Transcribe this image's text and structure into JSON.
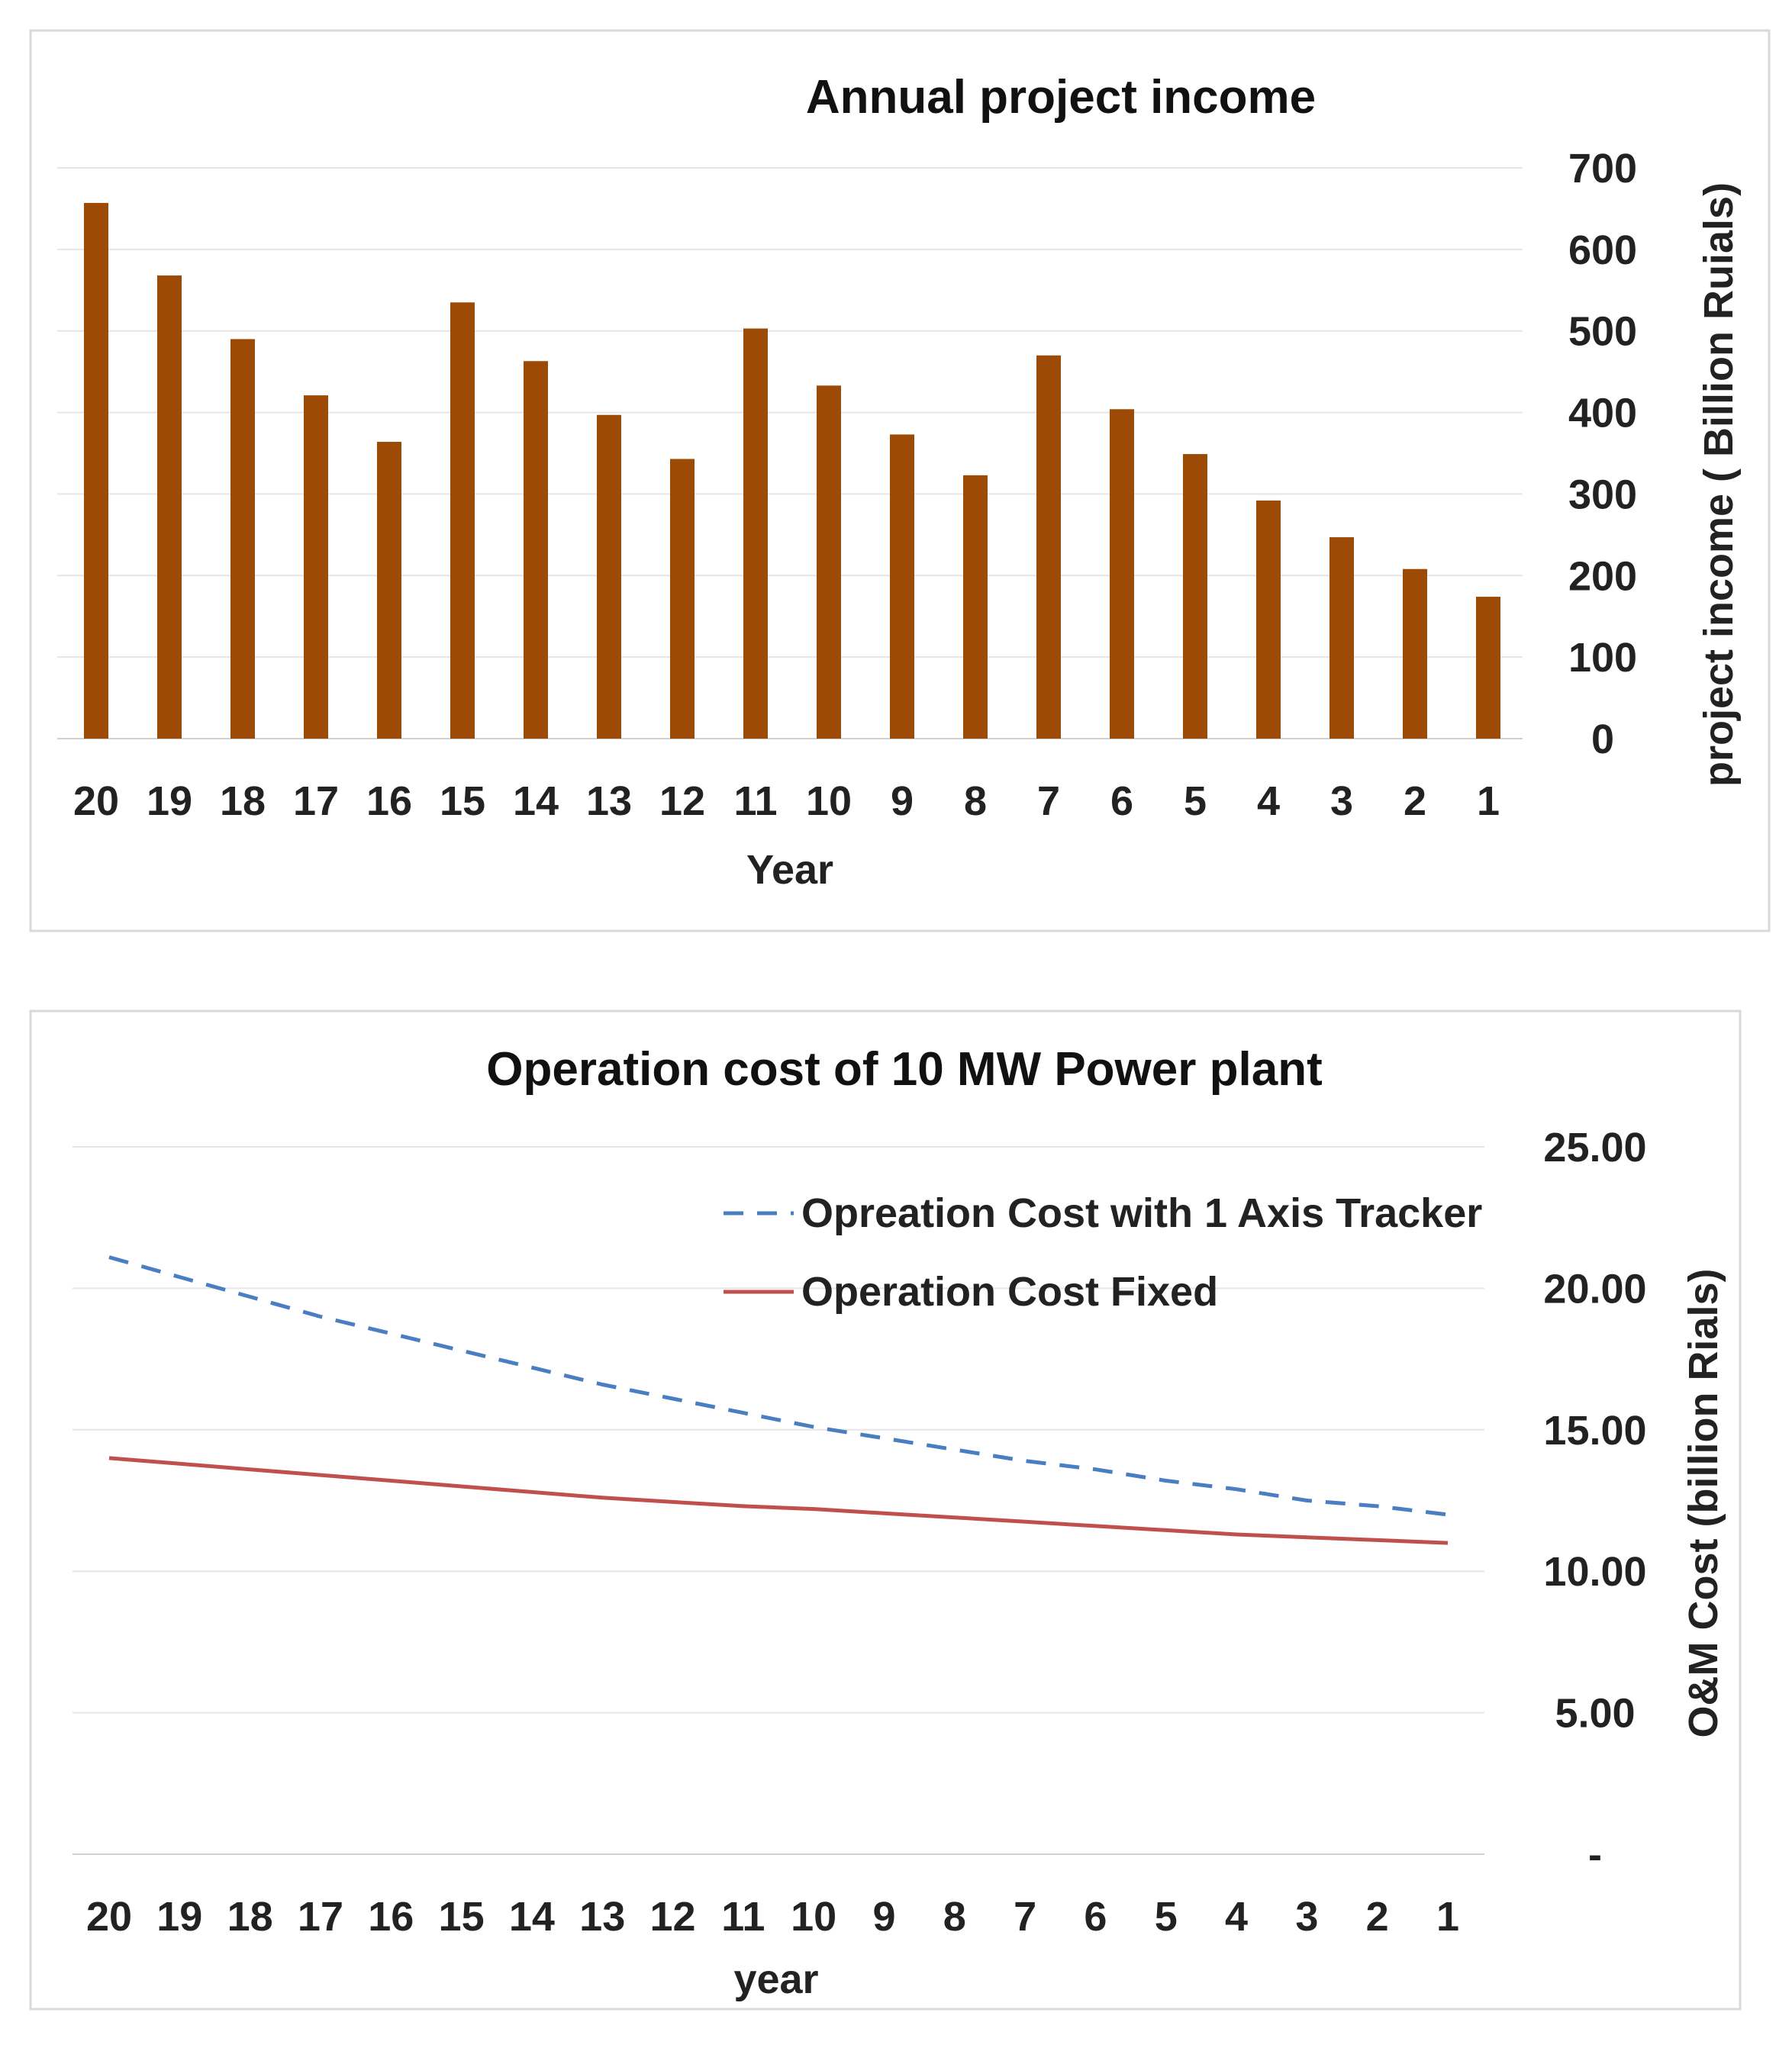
{
  "chart_data": [
    {
      "type": "bar",
      "title": "Annual project income",
      "xlabel": "Year",
      "ylabel": "project income ( Billion Ruials)",
      "categories": [
        "20",
        "19",
        "18",
        "17",
        "16",
        "15",
        "14",
        "13",
        "12",
        "11",
        "10",
        "9",
        "8",
        "7",
        "6",
        "5",
        "4",
        "3",
        "2",
        "1"
      ],
      "values": [
        657,
        568,
        490,
        421,
        364,
        535,
        463,
        397,
        343,
        503,
        433,
        373,
        323,
        470,
        404,
        349,
        292,
        247,
        208,
        174
      ],
      "ylim": [
        0,
        700
      ],
      "yticks": [
        "0",
        "100",
        "200",
        "300",
        "400",
        "500",
        "600",
        "700"
      ],
      "grid": true,
      "y_axis_side": "right",
      "color": "#9C4A05"
    },
    {
      "type": "line",
      "title": "Operation cost of 10 MW Power plant",
      "xlabel": "year",
      "ylabel": "O&M Cost (billion Rials)",
      "categories": [
        "20",
        "19",
        "18",
        "17",
        "16",
        "15",
        "14",
        "13",
        "12",
        "11",
        "10",
        "9",
        "8",
        "7",
        "6",
        "5",
        "4",
        "3",
        "2",
        "1"
      ],
      "series": [
        {
          "name": "Opreation Cost with 1 Axis Tracker",
          "style": "dashed",
          "color": "#4A7EC2",
          "values": [
            21.1,
            20.4,
            19.7,
            19.0,
            18.4,
            17.8,
            17.2,
            16.6,
            16.1,
            15.6,
            15.1,
            14.7,
            14.3,
            13.9,
            13.6,
            13.2,
            12.9,
            12.5,
            12.3,
            12.0
          ]
        },
        {
          "name": "Operation Cost Fixed",
          "style": "solid",
          "color": "#C0504D",
          "values": [
            14.0,
            13.8,
            13.6,
            13.4,
            13.2,
            13.0,
            12.8,
            12.6,
            12.45,
            12.3,
            12.2,
            12.05,
            11.9,
            11.75,
            11.6,
            11.45,
            11.3,
            11.2,
            11.1,
            11.0
          ]
        }
      ],
      "ylim": [
        0,
        25
      ],
      "yticks": [
        "-",
        "5.00",
        "10.00",
        "15.00",
        "20.00",
        "25.00"
      ],
      "grid": true,
      "y_axis_side": "right",
      "legend_position": "top-right"
    }
  ]
}
